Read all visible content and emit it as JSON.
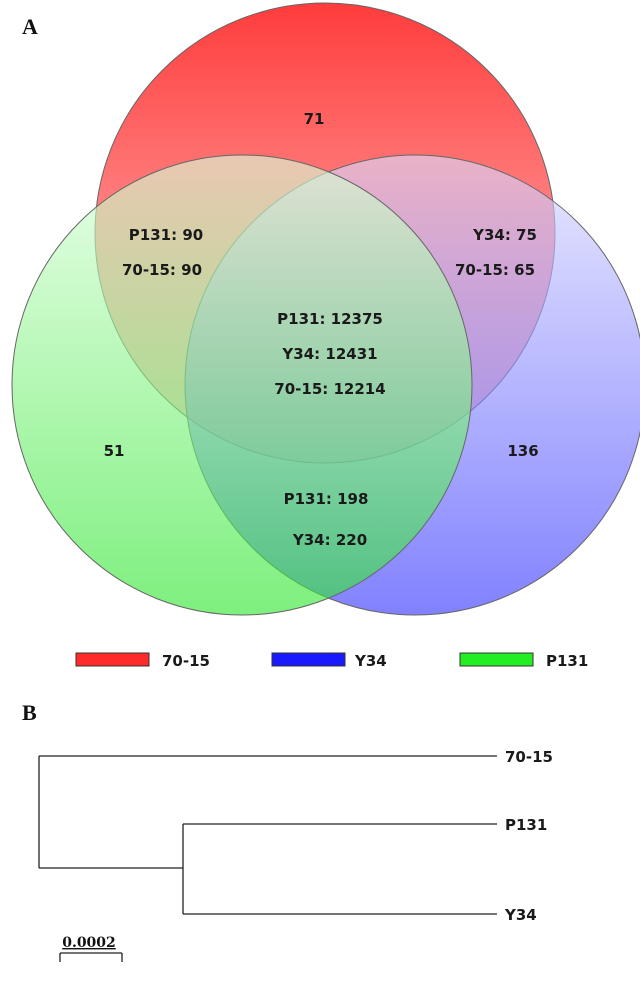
{
  "panel_a": {
    "letter": "A",
    "venn": {
      "sets": [
        {
          "name": "70-15",
          "color": "#ff3a3a"
        },
        {
          "name": "Y34",
          "color": "#3a3aff"
        },
        {
          "name": "P131",
          "color": "#3aef3a"
        }
      ],
      "regions": {
        "only_70_15": "71",
        "only_p131": "51",
        "only_y34": "136",
        "p131_70_15_a": "P131: 90",
        "p131_70_15_b": "70-15: 90",
        "y34_70_15_a": "Y34: 75",
        "y34_70_15_b": "70-15: 65",
        "all_p131": "P131: 12375",
        "all_y34": "Y34: 12431",
        "all_70_15": "70-15: 12214",
        "p131_y34_a": "P131: 198",
        "p131_y34_b": "Y34: 220"
      }
    },
    "legend": [
      {
        "label": "70-15",
        "color": "#ff2a2a"
      },
      {
        "label": "Y34",
        "color": "#1a1aff"
      },
      {
        "label": "P131",
        "color": "#22ee22"
      }
    ]
  },
  "panel_b": {
    "letter": "B",
    "tree": {
      "leaves": [
        "70-15",
        "P131",
        "Y34"
      ],
      "scale_label": "0.0002"
    }
  }
}
